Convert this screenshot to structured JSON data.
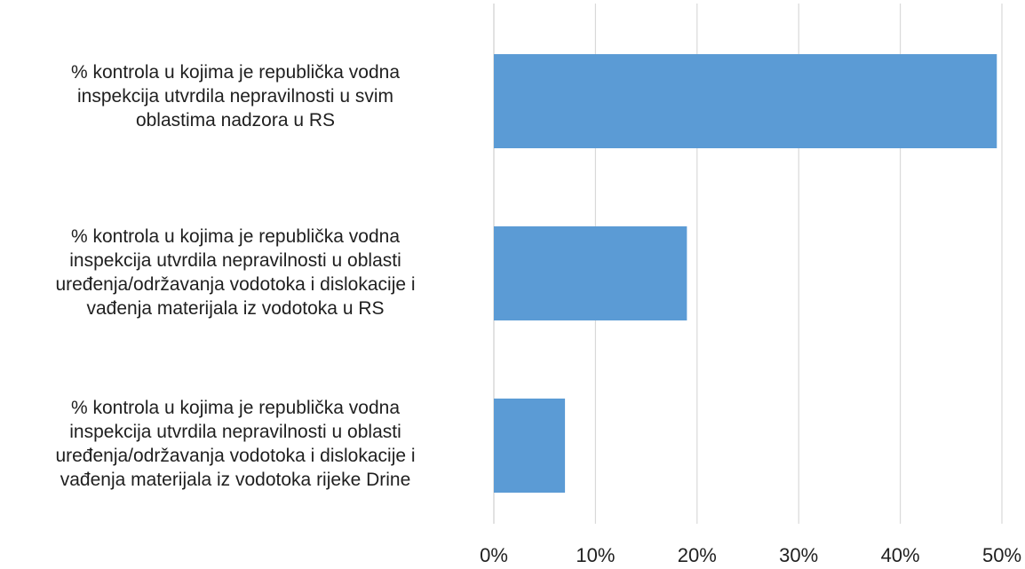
{
  "chart_data": {
    "type": "bar",
    "orientation": "horizontal",
    "categories": [
      "% kontrola u kojima je republička vodna\ninspekcija utvrdila nepravilnosti u svim\noblastima nadzora u RS",
      "% kontrola u kojima je republička vodna\ninspekcija utvrdila nepravilnosti u oblasti\nuređenja/održavanja vodotoka i dislokacije i\nvađenja materijala iz vodotoka u RS",
      "% kontrola u kojima je republička vodna\ninspekcija utvrdila nepravilnosti u oblasti\nuređenja/održavanja vodotoka i dislokacije i\nvađenja materijala iz vodotoka rijeke Drine"
    ],
    "values": [
      49.5,
      19,
      7
    ],
    "xlim": [
      0,
      50
    ],
    "ticks": [
      "0%",
      "10%",
      "20%",
      "30%",
      "40%",
      "50%"
    ],
    "grid": true,
    "bar_color": "#5b9bd5",
    "grid_color": "#d9d9d9"
  }
}
